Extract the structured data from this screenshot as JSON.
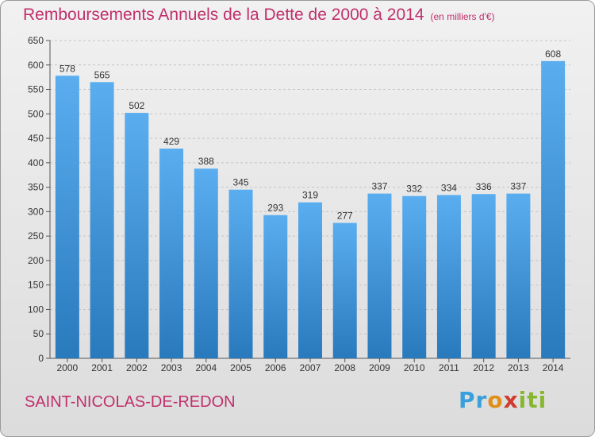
{
  "header": {
    "title": "Remboursements Annuels de la Dette de 2000 à 2014",
    "subtitle": "(en milliers d'€)"
  },
  "footer": {
    "commune": "SAINT-NICOLAS-DE-REDON",
    "logo": [
      "Pr",
      "o",
      "x",
      "iti"
    ]
  },
  "colors": {
    "title": "#c0306b",
    "bar_top": "#5aaef0",
    "bar_bottom": "#2979bd",
    "background_top": "#f1f1f1",
    "background_bottom": "#dcdcdc"
  },
  "chart_data": {
    "type": "bar",
    "title": "Remboursements Annuels de la Dette de 2000 à 2014",
    "xlabel": "",
    "ylabel": "",
    "categories": [
      "2000",
      "2001",
      "2002",
      "2003",
      "2004",
      "2005",
      "2006",
      "2007",
      "2008",
      "2009",
      "2010",
      "2011",
      "2012",
      "2013",
      "2014"
    ],
    "values": [
      578,
      565,
      502,
      429,
      388,
      345,
      293,
      319,
      277,
      337,
      332,
      334,
      336,
      337,
      608
    ],
    "ylim": [
      0,
      650
    ],
    "yticks": [
      0,
      50,
      100,
      150,
      200,
      250,
      300,
      350,
      400,
      450,
      500,
      550,
      600,
      650
    ],
    "grid": true,
    "data_labels": true
  }
}
